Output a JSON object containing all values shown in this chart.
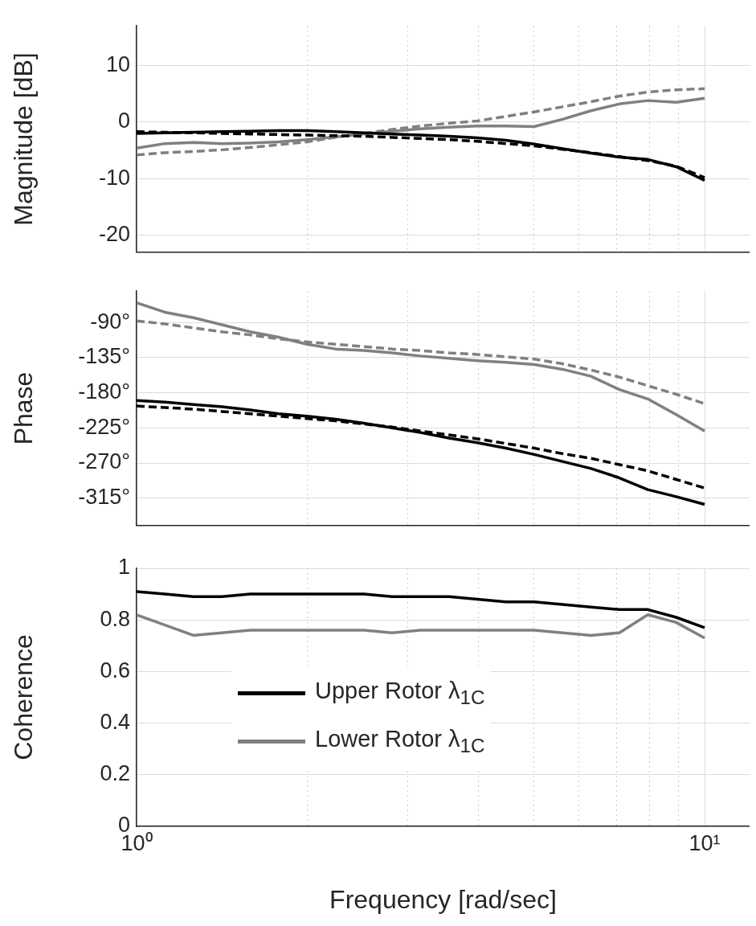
{
  "chart_data": [
    {
      "type": "line",
      "ylabel": "Magnitude [dB]",
      "log": "x",
      "grid": true,
      "marker": "none",
      "tick_labels": "y",
      "x": [
        1,
        1.122,
        1.259,
        1.413,
        1.585,
        1.778,
        1.995,
        2.239,
        2.512,
        2.818,
        3.162,
        3.548,
        3.981,
        4.467,
        5.012,
        5.623,
        6.31,
        7.079,
        7.943,
        8.913,
        10
      ],
      "xlim": [
        1,
        12
      ],
      "xticks": [
        {
          "value": 1,
          "label": null
        },
        {
          "value": 2,
          "label": null
        },
        {
          "value": 3,
          "label": null
        },
        {
          "value": 4,
          "label": null
        },
        {
          "value": 5,
          "label": null
        },
        {
          "value": 6,
          "label": null
        },
        {
          "value": 7,
          "label": null
        },
        {
          "value": 8,
          "label": null
        },
        {
          "value": 9,
          "label": null
        },
        {
          "value": 10,
          "label": null
        }
      ],
      "ylim": [
        -23,
        17
      ],
      "yticks": [
        -20,
        -10,
        0,
        10
      ],
      "series": [
        {
          "color": "#000000",
          "line_style": "solid",
          "values": [
            -2.0,
            -1.9,
            -1.8,
            -1.7,
            -1.6,
            -1.5,
            -1.5,
            -1.7,
            -1.9,
            -2.1,
            -2.3,
            -2.5,
            -2.8,
            -3.2,
            -3.9,
            -4.7,
            -5.5,
            -6.2,
            -6.6,
            -7.9,
            -10.3
          ]
        },
        {
          "color": "#000000",
          "line_style": "dashed",
          "values": [
            -1.7,
            -1.8,
            -1.9,
            -2.0,
            -2.1,
            -2.2,
            -2.3,
            -2.4,
            -2.5,
            -2.7,
            -2.9,
            -3.1,
            -3.4,
            -3.8,
            -4.2,
            -4.8,
            -5.4,
            -6.1,
            -6.8,
            -7.8,
            -9.8
          ]
        },
        {
          "color": "#808080",
          "line_style": "solid",
          "values": [
            -4.6,
            -3.8,
            -3.6,
            -3.8,
            -3.7,
            -3.5,
            -3.1,
            -2.6,
            -2.1,
            -1.6,
            -1.2,
            -0.9,
            -0.7,
            -0.7,
            -0.8,
            0.5,
            2.0,
            3.2,
            3.8,
            3.5,
            4.2
          ]
        },
        {
          "color": "#808080",
          "line_style": "dashed",
          "values": [
            -5.8,
            -5.4,
            -5.2,
            -4.9,
            -4.5,
            -4.0,
            -3.5,
            -2.7,
            -2.0,
            -1.3,
            -0.7,
            -0.2,
            0.2,
            1.0,
            1.8,
            2.7,
            3.6,
            4.6,
            5.3,
            5.7,
            5.9
          ]
        }
      ]
    },
    {
      "type": "line",
      "ylabel": "Phase",
      "log": "x",
      "grid": true,
      "marker": "none",
      "tick_labels": "y",
      "x": [
        1,
        1.122,
        1.259,
        1.413,
        1.585,
        1.778,
        1.995,
        2.239,
        2.512,
        2.818,
        3.162,
        3.548,
        3.981,
        4.467,
        5.012,
        5.623,
        6.31,
        7.079,
        7.943,
        8.913,
        10
      ],
      "xlim": [
        1,
        12
      ],
      "xticks": [
        {
          "value": 1,
          "label": null
        },
        {
          "value": 2,
          "label": null
        },
        {
          "value": 3,
          "label": null
        },
        {
          "value": 4,
          "label": null
        },
        {
          "value": 5,
          "label": null
        },
        {
          "value": 6,
          "label": null
        },
        {
          "value": 7,
          "label": null
        },
        {
          "value": 8,
          "label": null
        },
        {
          "value": 9,
          "label": null
        },
        {
          "value": 10,
          "label": null
        }
      ],
      "ylim": [
        -350,
        -50
      ],
      "yticks": [
        {
          "value": -315,
          "label": "-315°"
        },
        {
          "value": -270,
          "label": "-270°"
        },
        {
          "value": -225,
          "label": "-225°"
        },
        {
          "value": -180,
          "label": "-180°"
        },
        {
          "value": -135,
          "label": "-135°"
        },
        {
          "value": -90,
          "label": "-90°"
        }
      ],
      "series": [
        {
          "color": "#000000",
          "line_style": "solid",
          "values": [
            -190,
            -192,
            -195,
            -198,
            -202,
            -207,
            -210,
            -214,
            -219,
            -225,
            -231,
            -238,
            -244,
            -251,
            -259,
            -268,
            -277,
            -289,
            -304,
            -313,
            -323
          ]
        },
        {
          "color": "#000000",
          "line_style": "dashed",
          "values": [
            -197,
            -199,
            -201,
            -204,
            -207,
            -210,
            -213,
            -216,
            -220,
            -224,
            -229,
            -234,
            -239,
            -245,
            -251,
            -258,
            -264,
            -272,
            -280,
            -291,
            -302
          ]
        },
        {
          "color": "#808080",
          "line_style": "solid",
          "values": [
            -65,
            -77,
            -84,
            -93,
            -102,
            -109,
            -118,
            -124,
            -126,
            -129,
            -133,
            -136,
            -139,
            -141,
            -144,
            -150,
            -159,
            -176,
            -188,
            -208,
            -229
          ]
        },
        {
          "color": "#808080",
          "line_style": "dashed",
          "values": [
            -88,
            -92,
            -97,
            -102,
            -106,
            -111,
            -115,
            -118,
            -121,
            -124,
            -126,
            -129,
            -131,
            -134,
            -137,
            -143,
            -151,
            -160,
            -171,
            -182,
            -194
          ]
        }
      ]
    },
    {
      "type": "line",
      "ylabel": "Coherence",
      "xlabel": "Frequency [rad/sec]",
      "log": "x",
      "grid": true,
      "marker": "none",
      "legend": "bottom left",
      "x": [
        1,
        1.122,
        1.259,
        1.413,
        1.585,
        1.778,
        1.995,
        2.239,
        2.512,
        2.818,
        3.162,
        3.548,
        3.981,
        4.467,
        5.012,
        5.623,
        6.31,
        7.079,
        7.943,
        8.913,
        10
      ],
      "xlim": [
        1,
        12
      ],
      "xticks": [
        {
          "value": 1,
          "label": "10⁰"
        },
        {
          "value": 2,
          "label": null
        },
        {
          "value": 3,
          "label": null
        },
        {
          "value": 4,
          "label": null
        },
        {
          "value": 5,
          "label": null
        },
        {
          "value": 6,
          "label": null
        },
        {
          "value": 7,
          "label": null
        },
        {
          "value": 8,
          "label": null
        },
        {
          "value": 9,
          "label": null
        },
        {
          "value": 10,
          "label": "10¹"
        }
      ],
      "ylim": [
        0,
        1
      ],
      "yticks": [
        0,
        0.2,
        0.4,
        0.6,
        0.8,
        1
      ],
      "series": [
        {
          "name": "Upper Rotor λ$_{1C}$",
          "color": "#000000",
          "line_style": "solid",
          "values": [
            0.91,
            0.9,
            0.89,
            0.89,
            0.9,
            0.9,
            0.9,
            0.9,
            0.9,
            0.89,
            0.89,
            0.89,
            0.88,
            0.87,
            0.87,
            0.86,
            0.85,
            0.84,
            0.84,
            0.81,
            0.77
          ]
        },
        {
          "name": "Lower Rotor λ$_{1C}$",
          "color": "#808080",
          "line_style": "solid",
          "values": [
            0.82,
            0.78,
            0.74,
            0.75,
            0.76,
            0.76,
            0.76,
            0.76,
            0.76,
            0.75,
            0.76,
            0.76,
            0.76,
            0.76,
            0.76,
            0.75,
            0.74,
            0.75,
            0.82,
            0.79,
            0.73
          ]
        }
      ]
    }
  ]
}
